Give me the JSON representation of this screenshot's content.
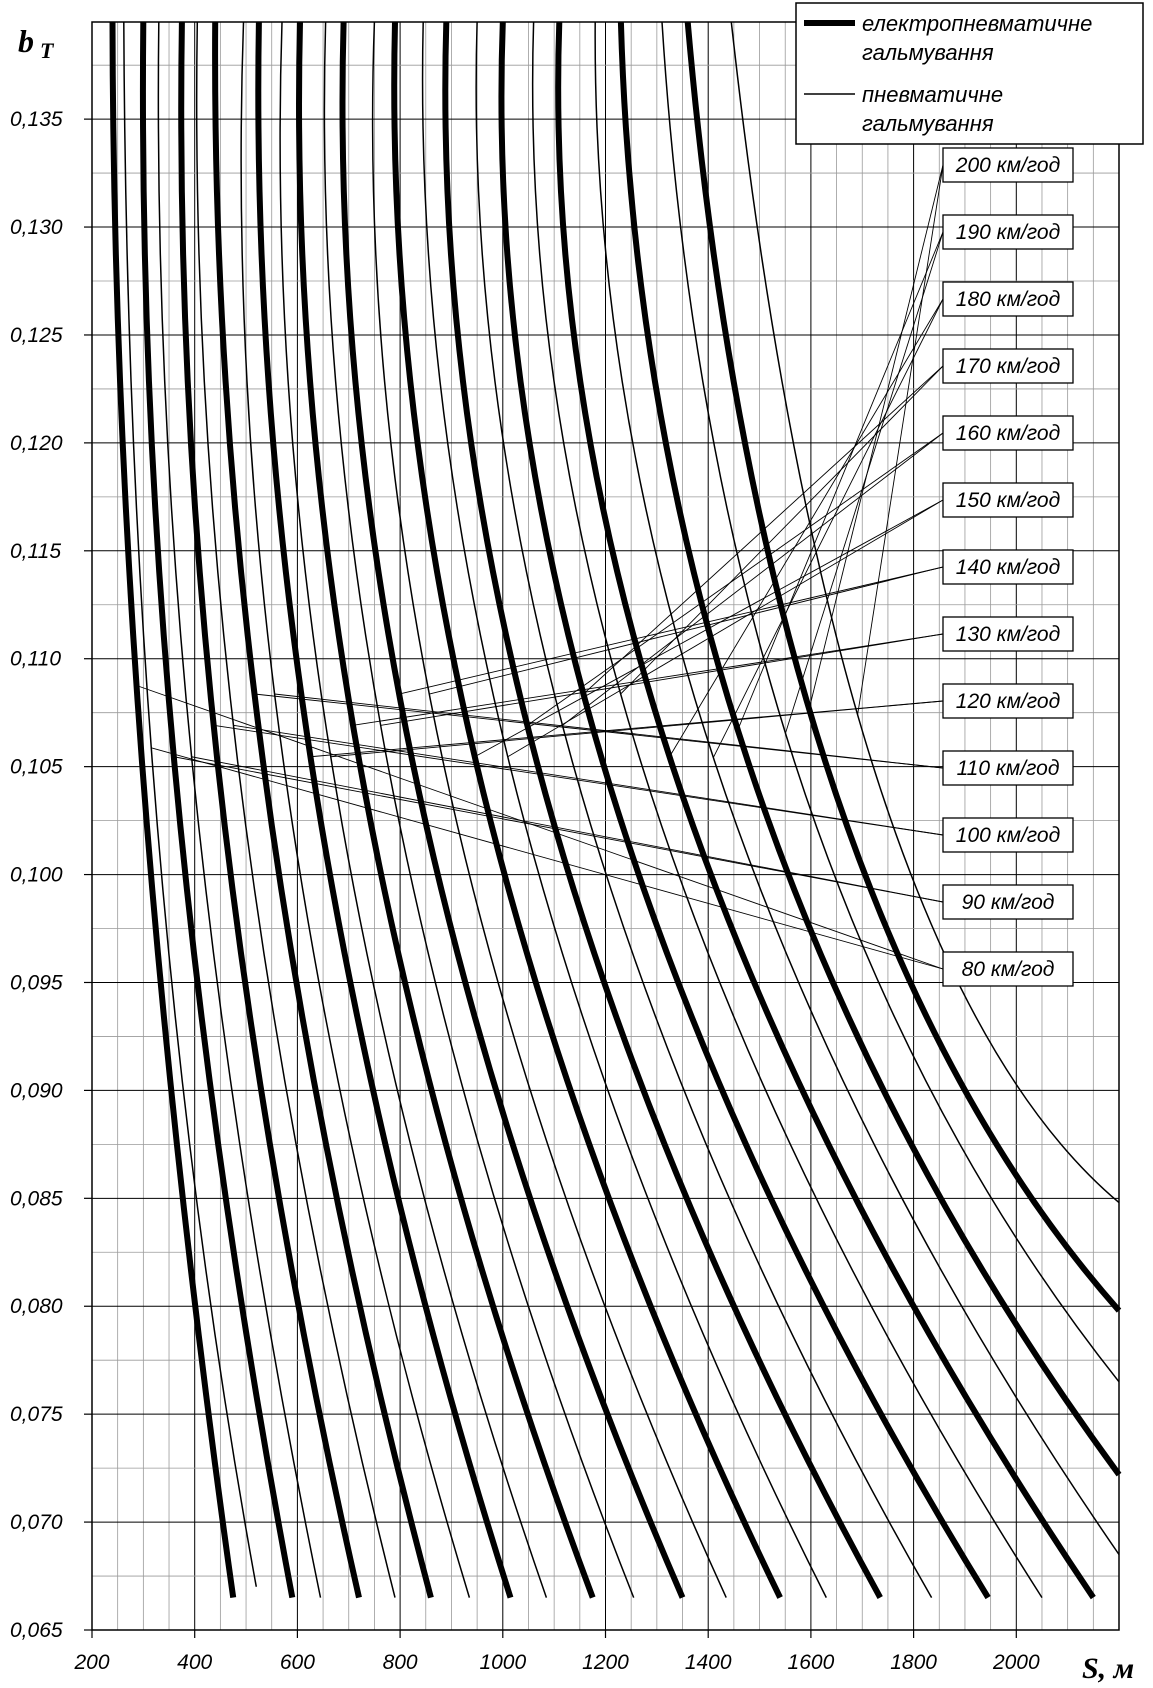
{
  "chart_data": {
    "type": "line",
    "ylabel": "b",
    "ylabel_sub": "Т",
    "xlabel": "S, м",
    "xlim": [
      200,
      2200
    ],
    "ylim": [
      0.065,
      0.1395
    ],
    "x_ticks": [
      {
        "value": 200,
        "label": "200"
      },
      {
        "value": 400,
        "label": "400"
      },
      {
        "value": 600,
        "label": "600"
      },
      {
        "value": 800,
        "label": "800"
      },
      {
        "value": 1000,
        "label": "1000"
      },
      {
        "value": 1200,
        "label": "1200"
      },
      {
        "value": 1400,
        "label": "1400"
      },
      {
        "value": 1600,
        "label": "1600"
      },
      {
        "value": 1800,
        "label": "1800"
      },
      {
        "value": 2000,
        "label": "2000"
      }
    ],
    "y_ticks": [
      {
        "value": 0.065,
        "label": "0,065"
      },
      {
        "value": 0.07,
        "label": "0,070"
      },
      {
        "value": 0.075,
        "label": "0,075"
      },
      {
        "value": 0.08,
        "label": "0,080"
      },
      {
        "value": 0.085,
        "label": "0,085"
      },
      {
        "value": 0.09,
        "label": "0,090"
      },
      {
        "value": 0.095,
        "label": "0,095"
      },
      {
        "value": 0.1,
        "label": "0,100"
      },
      {
        "value": 0.105,
        "label": "0,105"
      },
      {
        "value": 0.11,
        "label": "0,110"
      },
      {
        "value": 0.115,
        "label": "0,115"
      },
      {
        "value": 0.12,
        "label": "0,120"
      },
      {
        "value": 0.125,
        "label": "0,125"
      },
      {
        "value": 0.13,
        "label": "0,130"
      },
      {
        "value": 0.135,
        "label": "0,135"
      }
    ],
    "grid": true,
    "legend_position": "top-right",
    "legend": [
      {
        "style": "thick",
        "label_line1": "електропневматичне",
        "label_line2": "гальмування"
      },
      {
        "style": "thin",
        "label_line1": "пневматичне",
        "label_line2": "гальмування"
      }
    ],
    "series": [
      {
        "name": "80 км/год",
        "electropneumatic": [
          [
            240,
            0.1395
          ],
          [
            300,
            0.1044
          ],
          [
            475,
            0.0665
          ]
        ],
        "pneumatic": [
          [
            262,
            0.1395
          ],
          [
            330,
            0.1015
          ],
          [
            520,
            0.067
          ]
        ]
      },
      {
        "name": "90 км/год",
        "electropneumatic": [
          [
            300,
            0.1395
          ],
          [
            365,
            0.104
          ],
          [
            590,
            0.0665
          ]
        ],
        "pneumatic": [
          [
            330,
            0.1395
          ],
          [
            400,
            0.104
          ],
          [
            645,
            0.0665
          ]
        ]
      },
      {
        "name": "100 км/год",
        "electropneumatic": [
          [
            375,
            0.1395
          ],
          [
            450,
            0.104
          ],
          [
            720,
            0.0665
          ]
        ],
        "pneumatic": [
          [
            405,
            0.1395
          ],
          [
            490,
            0.104
          ],
          [
            790,
            0.0665
          ]
        ]
      },
      {
        "name": "110 км/год",
        "electropneumatic": [
          [
            440,
            0.1395
          ],
          [
            540,
            0.104
          ],
          [
            860,
            0.0665
          ]
        ],
        "pneumatic": [
          [
            495,
            0.1395
          ],
          [
            580,
            0.104
          ],
          [
            935,
            0.0665
          ]
        ]
      },
      {
        "name": "120 км/год",
        "electropneumatic": [
          [
            525,
            0.1395
          ],
          [
            635,
            0.104
          ],
          [
            1015,
            0.0665
          ]
        ],
        "pneumatic": [
          [
            570,
            0.1395
          ],
          [
            675,
            0.104
          ],
          [
            1085,
            0.0665
          ]
        ]
      },
      {
        "name": "130 км/год",
        "electropneumatic": [
          [
            605,
            0.1395
          ],
          [
            730,
            0.104
          ],
          [
            1175,
            0.0665
          ]
        ],
        "pneumatic": [
          [
            655,
            0.1395
          ],
          [
            785,
            0.104
          ],
          [
            1255,
            0.0665
          ]
        ]
      },
      {
        "name": "140 км/год",
        "electropneumatic": [
          [
            690,
            0.1395
          ],
          [
            835,
            0.104
          ],
          [
            1350,
            0.0665
          ]
        ],
        "pneumatic": [
          [
            750,
            0.1395
          ],
          [
            895,
            0.104
          ],
          [
            1435,
            0.0665
          ]
        ]
      },
      {
        "name": "150 км/год",
        "electropneumatic": [
          [
            790,
            0.1395
          ],
          [
            960,
            0.104
          ],
          [
            1540,
            0.0665
          ]
        ],
        "pneumatic": [
          [
            845,
            0.1395
          ],
          [
            1025,
            0.104
          ],
          [
            1630,
            0.0665
          ]
        ]
      },
      {
        "name": "160 км/год",
        "electropneumatic": [
          [
            890,
            0.1395
          ],
          [
            1080,
            0.104
          ],
          [
            1735,
            0.0665
          ]
        ],
        "pneumatic": [
          [
            950,
            0.1395
          ],
          [
            1150,
            0.104
          ],
          [
            1835,
            0.0665
          ]
        ]
      },
      {
        "name": "170 км/год",
        "electropneumatic": [
          [
            1000,
            0.1395
          ],
          [
            1210,
            0.104
          ],
          [
            1945,
            0.0665
          ]
        ],
        "pneumatic": [
          [
            1060,
            0.1395
          ],
          [
            1285,
            0.104
          ],
          [
            2050,
            0.0665
          ]
        ]
      },
      {
        "name": "180 км/год",
        "electropneumatic": [
          [
            1110,
            0.1395
          ],
          [
            1345,
            0.104
          ],
          [
            2150,
            0.0665
          ]
        ],
        "pneumatic": [
          [
            1180,
            0.1395
          ],
          [
            1430,
            0.104
          ],
          [
            2200,
            0.0685
          ]
        ]
      },
      {
        "name": "190 км/год",
        "electropneumatic": [
          [
            1230,
            0.1395
          ],
          [
            1495,
            0.104
          ],
          [
            2200,
            0.0722
          ]
        ],
        "pneumatic": [
          [
            1310,
            0.1395
          ],
          [
            1585,
            0.104
          ],
          [
            2200,
            0.0765
          ]
        ]
      },
      {
        "name": "200 км/год",
        "electropneumatic": [
          [
            1360,
            0.1395
          ],
          [
            1645,
            0.104
          ],
          [
            2200,
            0.0798
          ]
        ],
        "pneumatic": [
          [
            1445,
            0.1395
          ],
          [
            1735,
            0.104
          ],
          [
            2200,
            0.0848
          ]
        ]
      }
    ]
  }
}
